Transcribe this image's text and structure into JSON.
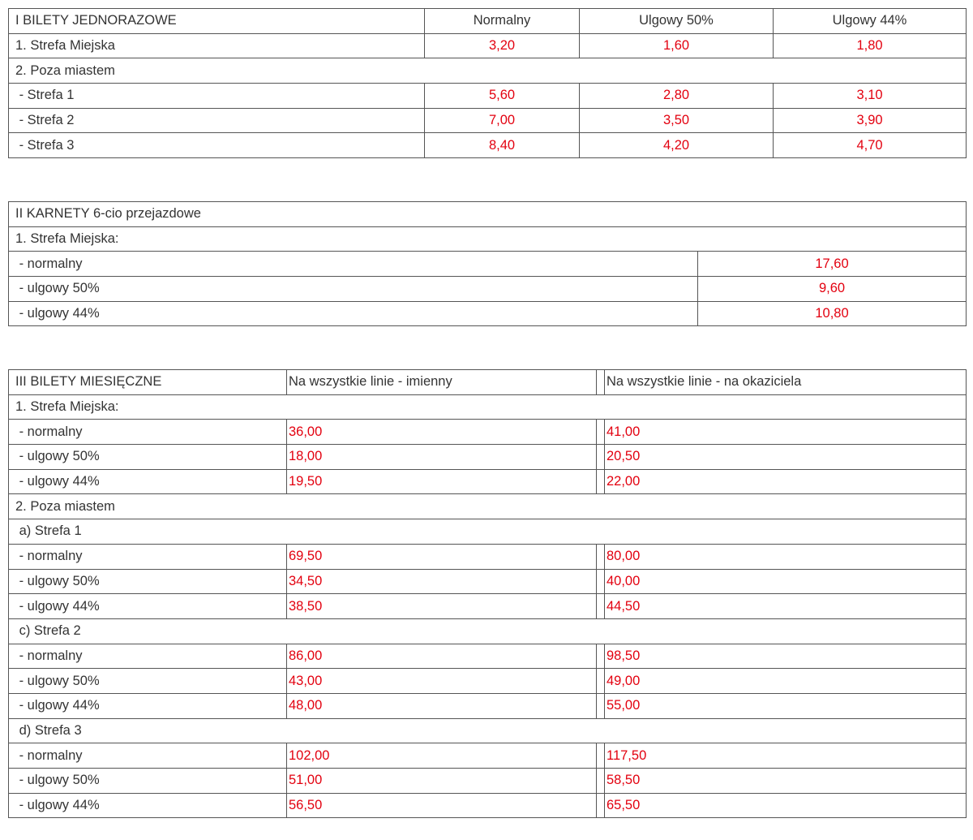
{
  "colors": {
    "value_text": "#e3000f",
    "label_text": "#333333",
    "border": "#555555"
  },
  "table1": {
    "title": "I BILETY JEDNORAZOWE",
    "headers": [
      "Normalny",
      "Ulgowy 50%",
      "Ulgowy 44%"
    ],
    "rows": [
      {
        "label": "1. Strefa Miejska",
        "values": [
          "3,20",
          "1,60",
          "1,80"
        ]
      },
      {
        "label": "2. Poza miastem",
        "section": true
      },
      {
        "label": " - Strefa 1",
        "values": [
          "5,60",
          "2,80",
          "3,10"
        ]
      },
      {
        "label": " - Strefa 2",
        "values": [
          "7,00",
          "3,50",
          "3,90"
        ]
      },
      {
        "label": " - Strefa 3",
        "values": [
          "8,40",
          "4,20",
          "4,70"
        ]
      }
    ]
  },
  "table2": {
    "title": "II KARNETY 6-cio przejazdowe",
    "rows": [
      {
        "label": "1. Strefa Miejska:",
        "section": true
      },
      {
        "label": " - normalny",
        "values": [
          "17,60"
        ]
      },
      {
        "label": " - ulgowy 50%",
        "values": [
          "9,60"
        ]
      },
      {
        "label": " - ulgowy 44%",
        "values": [
          "10,80"
        ]
      }
    ]
  },
  "table3": {
    "title": "III BILETY MIESIĘCZNE",
    "headers": [
      "Na wszystkie linie - imienny",
      "Na wszystkie linie - na okaziciela"
    ],
    "rows": [
      {
        "label": "1. Strefa Miejska:",
        "section": true
      },
      {
        "label": " - normalny",
        "values": [
          "36,00",
          "41,00"
        ]
      },
      {
        "label": " - ulgowy 50%",
        "values": [
          "18,00",
          "20,50"
        ]
      },
      {
        "label": " - ulgowy 44%",
        "values": [
          "19,50",
          "22,00"
        ]
      },
      {
        "label": "2. Poza miastem",
        "section": true
      },
      {
        "label": " a) Strefa 1",
        "section": true
      },
      {
        "label": " - normalny",
        "values": [
          "69,50",
          "80,00"
        ]
      },
      {
        "label": " - ulgowy 50%",
        "values": [
          "34,50",
          "40,00"
        ]
      },
      {
        "label": " - ulgowy 44%",
        "values": [
          "38,50",
          "44,50"
        ]
      },
      {
        "label": " c) Strefa 2",
        "section": true
      },
      {
        "label": " - normalny",
        "values": [
          "86,00",
          "98,50"
        ]
      },
      {
        "label": " - ulgowy 50%",
        "values": [
          "43,00",
          "49,00"
        ]
      },
      {
        "label": " - ulgowy 44%",
        "values": [
          "48,00",
          "55,00"
        ]
      },
      {
        "label": " d) Strefa 3",
        "section": true
      },
      {
        "label": " - normalny",
        "values": [
          "102,00",
          "117,50"
        ]
      },
      {
        "label": " - ulgowy 50%",
        "values": [
          "51,00",
          "58,50"
        ]
      },
      {
        "label": " - ulgowy 44%",
        "values": [
          "56,50",
          "65,50"
        ]
      }
    ]
  }
}
